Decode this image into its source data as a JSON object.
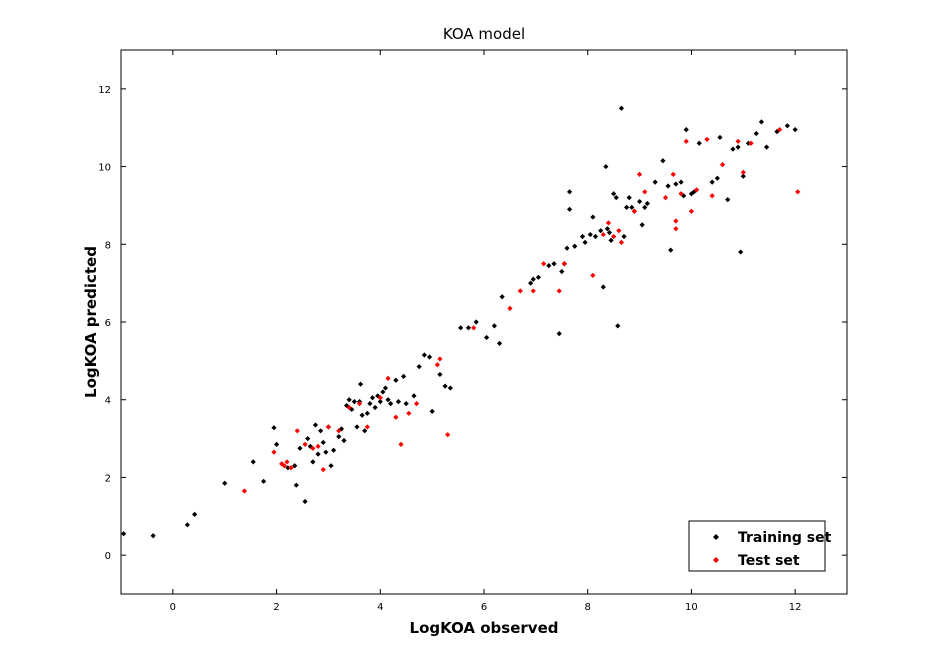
{
  "chart_data": {
    "type": "scatter",
    "title": "KOA model",
    "xlabel": "LogKOA observed",
    "ylabel": "LogKOA predicted",
    "xlim": [
      -1,
      13
    ],
    "ylim": [
      -1,
      13
    ],
    "xticks": [
      0,
      2,
      4,
      6,
      8,
      10,
      12
    ],
    "yticks": [
      0,
      2,
      4,
      6,
      8,
      10,
      12
    ],
    "grid": false,
    "legend_position": "bottom-right",
    "series": [
      {
        "name": "Training set",
        "color": "#000000",
        "points": [
          [
            -0.95,
            0.55
          ],
          [
            -0.38,
            0.5
          ],
          [
            0.28,
            0.78
          ],
          [
            0.42,
            1.05
          ],
          [
            1.0,
            1.85
          ],
          [
            1.55,
            2.4
          ],
          [
            1.75,
            1.9
          ],
          [
            1.95,
            3.28
          ],
          [
            2.0,
            2.85
          ],
          [
            2.1,
            2.35
          ],
          [
            2.22,
            2.25
          ],
          [
            2.35,
            2.3
          ],
          [
            2.38,
            1.8
          ],
          [
            2.45,
            2.75
          ],
          [
            2.55,
            1.38
          ],
          [
            2.6,
            3.0
          ],
          [
            2.65,
            2.8
          ],
          [
            2.7,
            2.4
          ],
          [
            2.75,
            3.35
          ],
          [
            2.8,
            2.6
          ],
          [
            2.85,
            3.2
          ],
          [
            2.9,
            2.9
          ],
          [
            2.95,
            2.65
          ],
          [
            3.0,
            3.3
          ],
          [
            3.05,
            2.3
          ],
          [
            3.1,
            2.7
          ],
          [
            3.2,
            3.05
          ],
          [
            3.25,
            3.25
          ],
          [
            3.3,
            2.95
          ],
          [
            3.35,
            3.85
          ],
          [
            3.4,
            4.0
          ],
          [
            3.45,
            3.75
          ],
          [
            3.5,
            3.95
          ],
          [
            3.55,
            3.3
          ],
          [
            3.6,
            3.95
          ],
          [
            3.62,
            4.4
          ],
          [
            3.65,
            3.6
          ],
          [
            3.7,
            3.2
          ],
          [
            3.75,
            3.65
          ],
          [
            3.8,
            3.9
          ],
          [
            3.85,
            4.05
          ],
          [
            3.9,
            3.8
          ],
          [
            3.95,
            4.1
          ],
          [
            4.0,
            3.95
          ],
          [
            4.05,
            4.2
          ],
          [
            4.1,
            4.3
          ],
          [
            4.15,
            4.0
          ],
          [
            4.2,
            3.9
          ],
          [
            4.3,
            4.5
          ],
          [
            4.35,
            3.95
          ],
          [
            4.45,
            4.6
          ],
          [
            4.5,
            3.9
          ],
          [
            4.65,
            4.1
          ],
          [
            4.75,
            4.85
          ],
          [
            4.85,
            5.15
          ],
          [
            4.95,
            5.1
          ],
          [
            5.0,
            3.7
          ],
          [
            5.15,
            4.65
          ],
          [
            5.25,
            4.35
          ],
          [
            5.35,
            4.3
          ],
          [
            5.55,
            5.85
          ],
          [
            5.7,
            5.85
          ],
          [
            5.85,
            6.0
          ],
          [
            6.05,
            5.6
          ],
          [
            6.2,
            5.9
          ],
          [
            6.3,
            5.45
          ],
          [
            6.35,
            6.65
          ],
          [
            6.9,
            7.0
          ],
          [
            6.95,
            7.1
          ],
          [
            7.05,
            7.15
          ],
          [
            7.25,
            7.45
          ],
          [
            7.35,
            7.5
          ],
          [
            7.45,
            5.7
          ],
          [
            7.5,
            7.3
          ],
          [
            7.55,
            7.5
          ],
          [
            7.6,
            7.9
          ],
          [
            7.65,
            8.9
          ],
          [
            7.65,
            9.35
          ],
          [
            7.75,
            7.95
          ],
          [
            7.9,
            8.2
          ],
          [
            7.95,
            8.05
          ],
          [
            8.05,
            8.25
          ],
          [
            8.1,
            8.7
          ],
          [
            8.15,
            8.2
          ],
          [
            8.25,
            8.35
          ],
          [
            8.3,
            6.9
          ],
          [
            8.35,
            10.0
          ],
          [
            8.38,
            8.4
          ],
          [
            8.42,
            8.3
          ],
          [
            8.45,
            8.1
          ],
          [
            8.5,
            9.3
          ],
          [
            8.55,
            9.2
          ],
          [
            8.58,
            5.9
          ],
          [
            8.65,
            11.5
          ],
          [
            8.7,
            8.2
          ],
          [
            8.75,
            8.95
          ],
          [
            8.8,
            9.2
          ],
          [
            8.85,
            8.95
          ],
          [
            8.9,
            8.85
          ],
          [
            9.0,
            9.1
          ],
          [
            9.05,
            8.5
          ],
          [
            9.1,
            8.95
          ],
          [
            9.15,
            9.05
          ],
          [
            9.3,
            9.6
          ],
          [
            9.45,
            10.15
          ],
          [
            9.55,
            9.5
          ],
          [
            9.6,
            7.85
          ],
          [
            9.7,
            9.55
          ],
          [
            9.8,
            9.6
          ],
          [
            9.85,
            9.25
          ],
          [
            9.9,
            10.95
          ],
          [
            10.0,
            9.3
          ],
          [
            10.05,
            9.35
          ],
          [
            10.15,
            10.6
          ],
          [
            10.4,
            9.6
          ],
          [
            10.5,
            9.7
          ],
          [
            10.55,
            10.75
          ],
          [
            10.7,
            9.15
          ],
          [
            10.8,
            10.45
          ],
          [
            10.9,
            10.5
          ],
          [
            10.95,
            7.8
          ],
          [
            11.0,
            9.75
          ],
          [
            11.1,
            10.6
          ],
          [
            11.25,
            10.85
          ],
          [
            11.35,
            11.15
          ],
          [
            11.45,
            10.5
          ],
          [
            11.65,
            10.9
          ],
          [
            11.85,
            11.05
          ],
          [
            12.0,
            10.95
          ]
        ]
      },
      {
        "name": "Test set",
        "color": "#ff0000",
        "points": [
          [
            1.38,
            1.65
          ],
          [
            1.95,
            2.65
          ],
          [
            2.1,
            2.35
          ],
          [
            2.15,
            2.3
          ],
          [
            2.2,
            2.4
          ],
          [
            2.28,
            2.25
          ],
          [
            2.4,
            3.2
          ],
          [
            2.55,
            2.85
          ],
          [
            2.7,
            2.75
          ],
          [
            2.8,
            2.8
          ],
          [
            2.9,
            2.2
          ],
          [
            3.0,
            3.3
          ],
          [
            3.2,
            3.2
          ],
          [
            3.4,
            3.8
          ],
          [
            3.6,
            3.9
          ],
          [
            3.75,
            3.3
          ],
          [
            4.0,
            4.05
          ],
          [
            4.15,
            4.55
          ],
          [
            4.3,
            3.55
          ],
          [
            4.4,
            2.85
          ],
          [
            4.55,
            3.65
          ],
          [
            4.7,
            3.9
          ],
          [
            5.1,
            4.9
          ],
          [
            5.15,
            5.05
          ],
          [
            5.3,
            3.1
          ],
          [
            5.8,
            5.85
          ],
          [
            6.5,
            6.35
          ],
          [
            6.7,
            6.8
          ],
          [
            6.95,
            6.8
          ],
          [
            7.15,
            7.5
          ],
          [
            7.45,
            6.8
          ],
          [
            7.55,
            7.5
          ],
          [
            8.1,
            7.2
          ],
          [
            8.3,
            8.25
          ],
          [
            8.4,
            8.55
          ],
          [
            8.5,
            8.2
          ],
          [
            8.6,
            8.35
          ],
          [
            8.65,
            8.05
          ],
          [
            8.9,
            8.85
          ],
          [
            9.0,
            9.8
          ],
          [
            9.1,
            9.35
          ],
          [
            9.5,
            9.2
          ],
          [
            9.65,
            9.8
          ],
          [
            9.7,
            8.6
          ],
          [
            9.7,
            8.4
          ],
          [
            9.8,
            9.3
          ],
          [
            9.9,
            10.65
          ],
          [
            10.0,
            8.85
          ],
          [
            10.1,
            9.4
          ],
          [
            10.3,
            10.7
          ],
          [
            10.4,
            9.25
          ],
          [
            10.6,
            10.05
          ],
          [
            10.9,
            10.65
          ],
          [
            11.0,
            9.85
          ],
          [
            11.15,
            10.6
          ],
          [
            11.7,
            10.95
          ],
          [
            12.05,
            9.35
          ]
        ]
      }
    ]
  }
}
